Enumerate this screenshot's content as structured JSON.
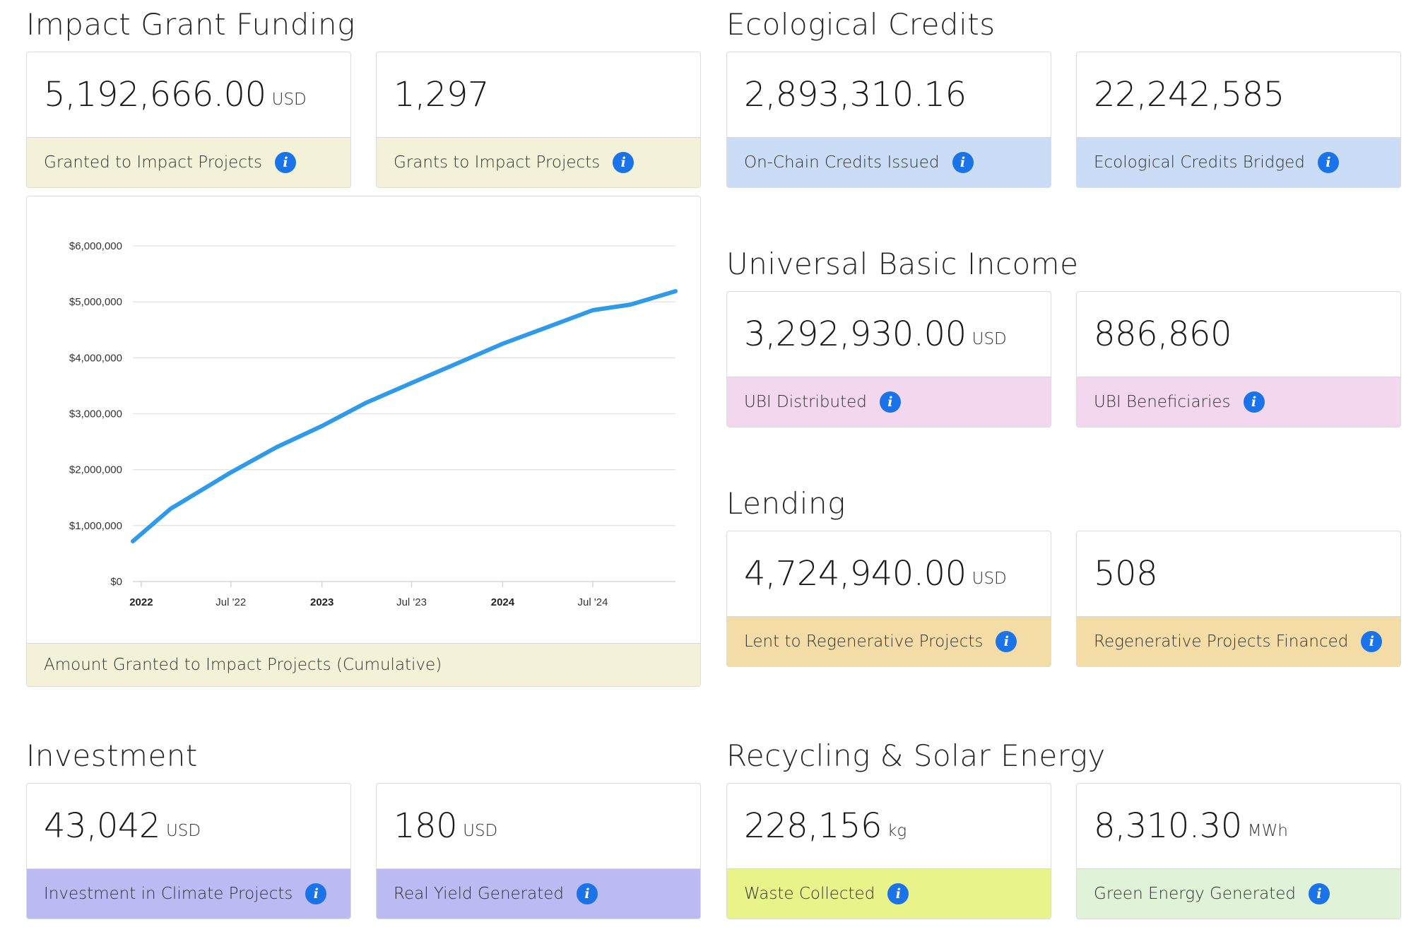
{
  "colors": {
    "grant": "#f3f2d9",
    "credits": "#cbdcf6",
    "ubi": "#f3d7ee",
    "lending": "#f4dca6",
    "investment": "#bbbaf2",
    "waste": "#e8f48a",
    "energy": "#e0f2d8",
    "line": "#2f9ae8",
    "info_icon": "#1a73e8"
  },
  "sections": {
    "impact_grant": {
      "title": "Impact Grant Funding",
      "cards": [
        {
          "value": "5,192,666.00",
          "unit": "USD",
          "label": "Granted to Impact Projects"
        },
        {
          "value": "1,297",
          "unit": "",
          "label": "Grants to Impact Projects"
        }
      ],
      "chart_caption": "Amount Granted to Impact Projects (Cumulative)"
    },
    "ecological_credits": {
      "title": "Ecological Credits",
      "cards": [
        {
          "value": "2,893,310.16",
          "unit": "",
          "label": "On-Chain Credits Issued"
        },
        {
          "value": "22,242,585",
          "unit": "",
          "label": "Ecological Credits Bridged"
        }
      ]
    },
    "ubi": {
      "title": "Universal Basic Income",
      "cards": [
        {
          "value": "3,292,930.00",
          "unit": "USD",
          "label": "UBI Distributed"
        },
        {
          "value": "886,860",
          "unit": "",
          "label": "UBI Beneficiaries"
        }
      ]
    },
    "lending": {
      "title": "Lending",
      "cards": [
        {
          "value": "4,724,940.00",
          "unit": "USD",
          "label": "Lent to Regenerative Projects"
        },
        {
          "value": "508",
          "unit": "",
          "label": "Regenerative Projects Financed"
        }
      ]
    },
    "investment": {
      "title": "Investment",
      "cards": [
        {
          "value": "43,042",
          "unit": "USD",
          "label": "Investment in Climate Projects"
        },
        {
          "value": "180",
          "unit": "USD",
          "label": "Real Yield Generated"
        }
      ]
    },
    "recycling": {
      "title": "Recycling & Solar Energy",
      "cards": [
        {
          "value": "228,156",
          "unit": "kg",
          "label": "Waste Collected"
        },
        {
          "value": "8,310.30",
          "unit": "MWh",
          "label": "Green Energy Generated"
        }
      ]
    }
  },
  "info_glyph": "i",
  "chart_data": {
    "type": "line",
    "title": "",
    "xlabel": "",
    "ylabel": "",
    "ylim": [
      0,
      6000000
    ],
    "y_ticks": [
      0,
      1000000,
      2000000,
      3000000,
      4000000,
      5000000,
      6000000
    ],
    "y_tick_labels": [
      "$0",
      "$1,000,000",
      "$2,000,000",
      "$3,000,000",
      "$4,000,000",
      "$5,000,000",
      "$6,000,000"
    ],
    "x_ticks": [
      "2022-01-01",
      "2022-07-01",
      "2023-01-01",
      "2023-07-01",
      "2024-01-01",
      "2024-07-01"
    ],
    "x_tick_labels": [
      "2022",
      "Jul '22",
      "2023",
      "Jul '23",
      "2024",
      "Jul '24"
    ],
    "x_tick_bold": [
      true,
      false,
      true,
      false,
      true,
      false
    ],
    "xlim": [
      "2021-12-15",
      "2024-12-15"
    ],
    "grid": true,
    "series": [
      {
        "x": [
          "2021-12-15",
          "2022-03-01",
          "2022-07-01",
          "2022-10-01",
          "2023-01-01",
          "2023-04-01",
          "2023-07-01",
          "2023-10-01",
          "2024-01-01",
          "2024-04-01",
          "2024-07-01",
          "2024-09-15",
          "2024-12-15"
        ],
        "values": [
          720000,
          1300000,
          1950000,
          2400000,
          2780000,
          3200000,
          3550000,
          3900000,
          4250000,
          4550000,
          4850000,
          4950000,
          5190000
        ]
      }
    ]
  }
}
